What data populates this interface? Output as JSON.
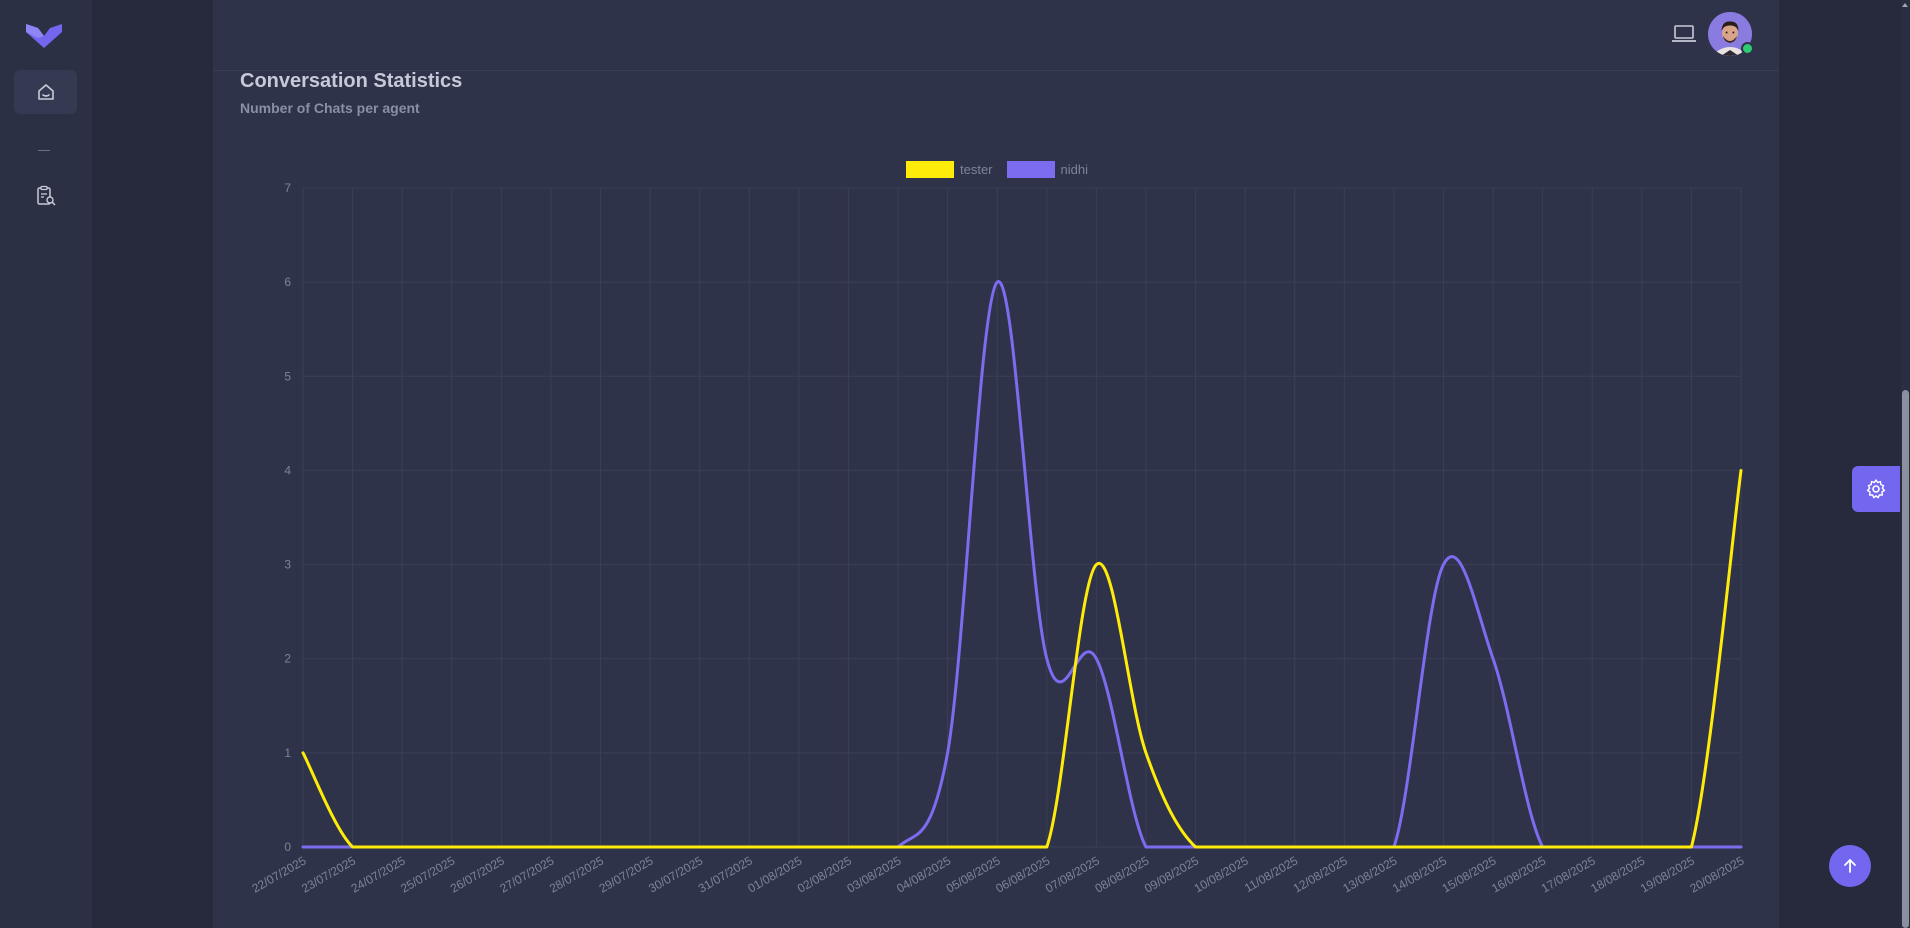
{
  "header": {
    "avatar_alt": "User avatar"
  },
  "card": {
    "title": "Conversation Statistics",
    "subtitle": "Number of Chats per agent"
  },
  "colors": {
    "accent": "#7367f0",
    "tester": "#ffeb0a",
    "nidhi": "#7b6cf0"
  },
  "chart_data": {
    "type": "line",
    "x": [
      "22/07/2025",
      "23/07/2025",
      "24/07/2025",
      "25/07/2025",
      "26/07/2025",
      "27/07/2025",
      "28/07/2025",
      "29/07/2025",
      "30/07/2025",
      "31/07/2025",
      "01/08/2025",
      "02/08/2025",
      "03/08/2025",
      "04/08/2025",
      "05/08/2025",
      "06/08/2025",
      "07/08/2025",
      "08/08/2025",
      "09/08/2025",
      "10/08/2025",
      "11/08/2025",
      "12/08/2025",
      "13/08/2025",
      "14/08/2025",
      "15/08/2025",
      "16/08/2025",
      "17/08/2025",
      "18/08/2025",
      "19/08/2025",
      "20/08/2025"
    ],
    "series": [
      {
        "name": "tester",
        "color": "#ffeb0a",
        "values": [
          1,
          0,
          0,
          0,
          0,
          0,
          0,
          0,
          0,
          0,
          0,
          0,
          0,
          0,
          0,
          0,
          3,
          1,
          0,
          0,
          0,
          0,
          0,
          0,
          0,
          0,
          0,
          0,
          0,
          4
        ]
      },
      {
        "name": "nidhi",
        "color": "#7b6cf0",
        "values": [
          0,
          0,
          0,
          0,
          0,
          0,
          0,
          0,
          0,
          0,
          0,
          0,
          0,
          1,
          6,
          2,
          2,
          0,
          0,
          0,
          0,
          0,
          0,
          3,
          2,
          0,
          0,
          0,
          0,
          0
        ]
      }
    ],
    "yticks": [
      "0",
      "1",
      "2",
      "3",
      "4",
      "5",
      "6",
      "7"
    ],
    "ylim": [
      0,
      7
    ],
    "grid": true,
    "legend_position": "top-center"
  }
}
